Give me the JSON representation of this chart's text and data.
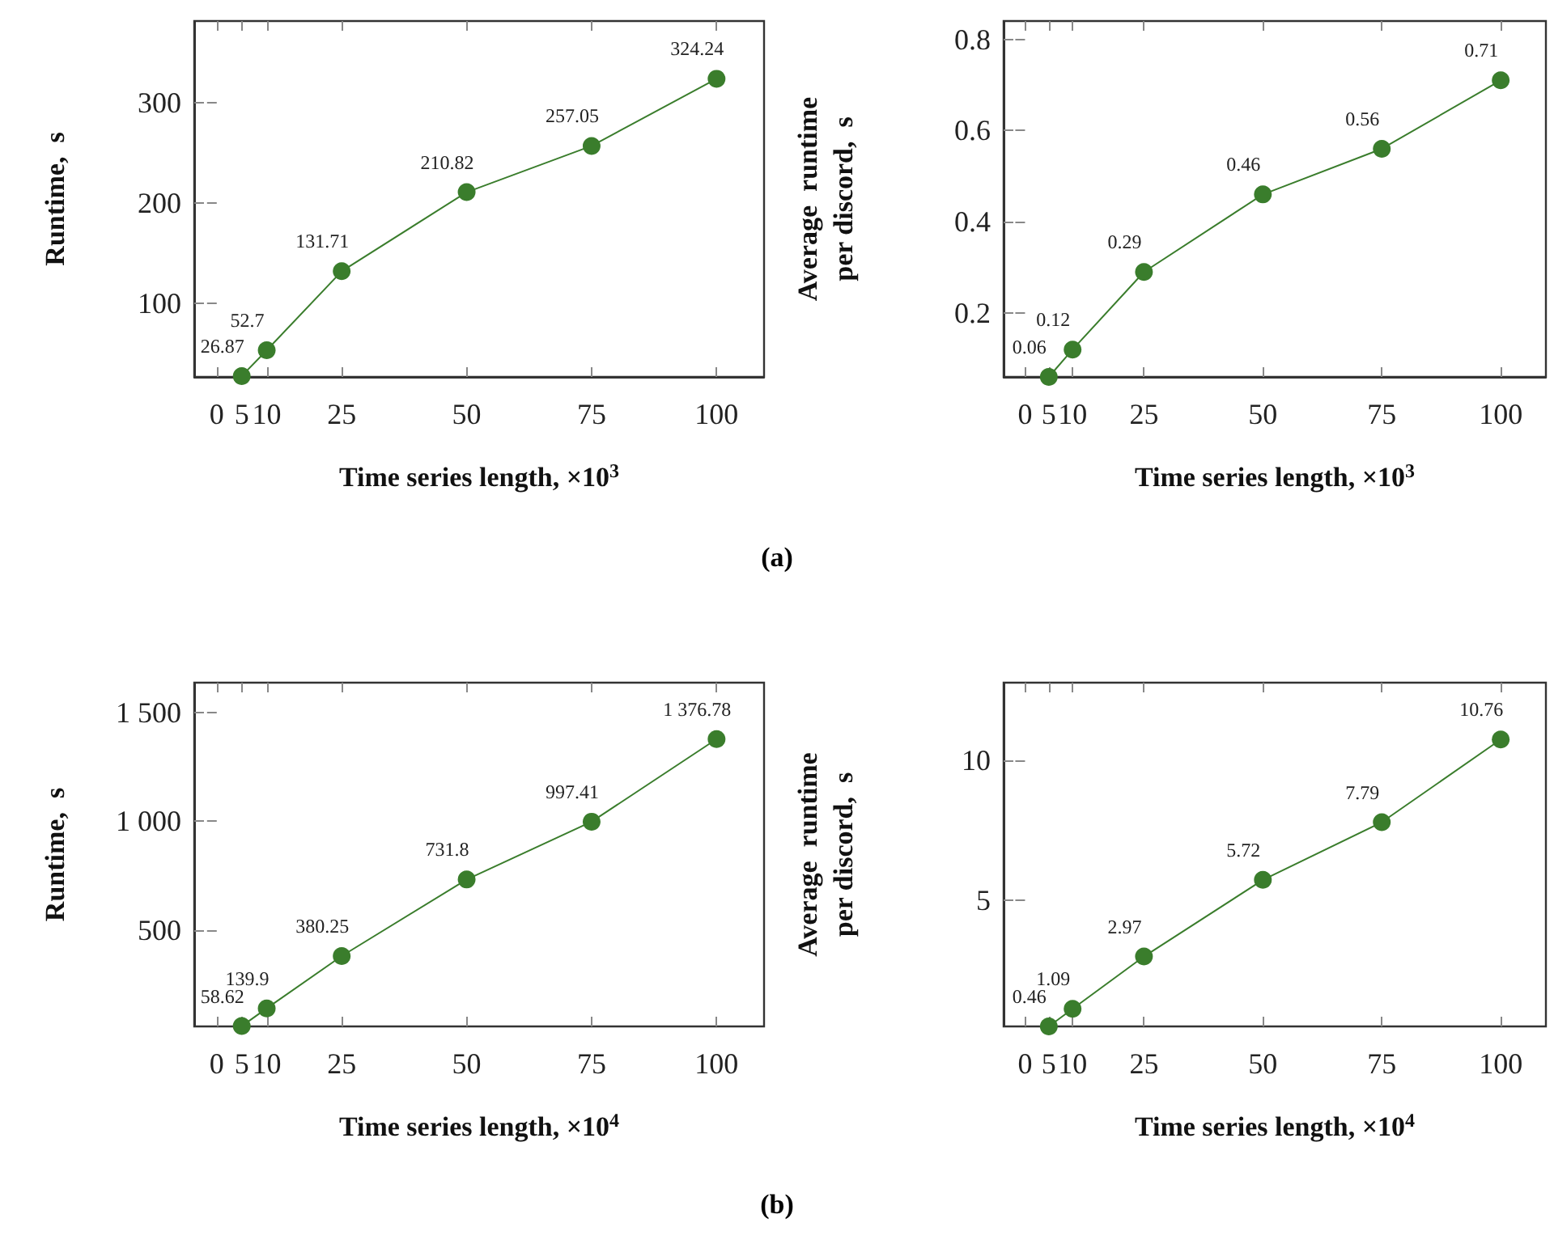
{
  "chart_data": [
    {
      "type": "line",
      "xlabel": "Time series length, ×10$^{3}$",
      "ylabel": "Runtime,  s",
      "x": [
        5,
        10,
        25,
        50,
        75,
        100
      ],
      "xlim": [
        -4.5,
        109.5
      ],
      "xticks": [
        0,
        5,
        10,
        25,
        50,
        75,
        100
      ],
      "ylim": [
        26,
        382
      ],
      "yticks": [
        100,
        200,
        300
      ],
      "marker": "circle",
      "grid": false,
      "annotations": [
        "(a)"
      ],
      "series": [
        {
          "color": "#3a7d2c",
          "values": [
            26.87,
            52.7,
            131.71,
            210.82,
            257.05,
            324.24
          ],
          "value_labels": [
            "26.87",
            "52.7",
            "131.71",
            "210.82",
            "257.05",
            "324.24"
          ]
        }
      ]
    },
    {
      "type": "line",
      "xlabel": "Time series length, ×10$^{3}$",
      "ylabel": "Average  runtime per discord,  s",
      "x": [
        5,
        10,
        25,
        50,
        75,
        100
      ],
      "xlim": [
        -4.5,
        109.5
      ],
      "xticks": [
        0,
        5,
        10,
        25,
        50,
        75,
        100
      ],
      "ylim": [
        0.06,
        0.84
      ],
      "yticks": [
        0.2,
        0.4,
        0.6,
        0.8
      ],
      "marker": "circle",
      "grid": false,
      "series": [
        {
          "color": "#3a7d2c",
          "values": [
            0.06,
            0.12,
            0.29,
            0.46,
            0.56,
            0.71
          ],
          "value_labels": [
            "0.06",
            "0.12",
            "0.29",
            "0.46",
            "0.56",
            "0.71"
          ]
        }
      ]
    },
    {
      "type": "line",
      "xlabel": "Time series length, ×10$^{4}$",
      "ylabel": "Runtime,  s",
      "x": [
        5,
        10,
        25,
        50,
        75,
        100
      ],
      "xlim": [
        -4.5,
        109.5
      ],
      "xticks": [
        0,
        5,
        10,
        25,
        50,
        75,
        100
      ],
      "ylim": [
        57,
        1636
      ],
      "yticks": [
        500,
        {
          "value": 1000,
          "label": "1 000"
        },
        {
          "value": 1500,
          "label": "1 500"
        }
      ],
      "marker": "circle",
      "grid": false,
      "annotations": [
        "(b)"
      ],
      "series": [
        {
          "color": "#3a7d2c",
          "values": [
            58.62,
            139.9,
            380.25,
            731.8,
            997.41,
            1376.78
          ],
          "value_labels": [
            "58.62",
            "139.9",
            "380.25",
            "731.8",
            "997.41",
            "1 376.78"
          ]
        }
      ]
    },
    {
      "type": "line",
      "xlabel": "Time series length, ×10$^{4}$",
      "ylabel": "Average  runtime per discord,  s",
      "x": [
        5,
        10,
        25,
        50,
        75,
        100
      ],
      "xlim": [
        -4.5,
        109.5
      ],
      "xticks": [
        0,
        5,
        10,
        25,
        50,
        75,
        100
      ],
      "ylim": [
        0.46,
        12.8
      ],
      "yticks": [
        5,
        10
      ],
      "marker": "circle",
      "grid": false,
      "series": [
        {
          "color": "#3a7d2c",
          "values": [
            0.46,
            1.09,
            2.97,
            5.72,
            7.79,
            10.76
          ],
          "value_labels": [
            "0.46",
            "1.09",
            "2.97",
            "5.72",
            "7.79",
            "10.76"
          ]
        }
      ]
    }
  ]
}
